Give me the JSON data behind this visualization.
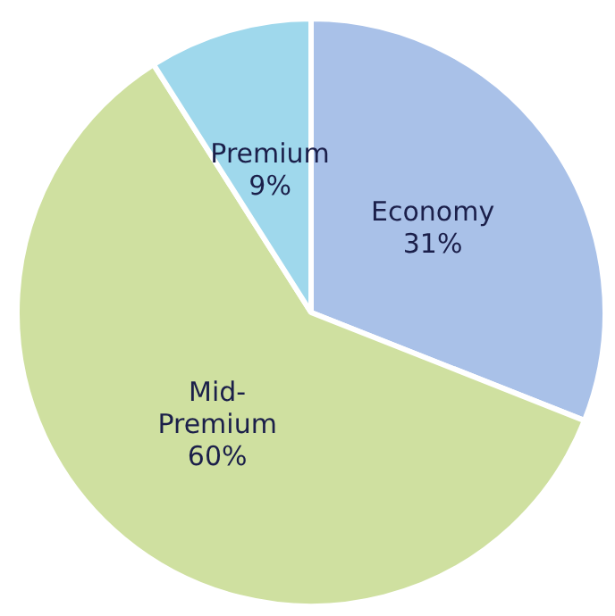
{
  "chart_data": {
    "type": "pie",
    "categories": [
      "Economy",
      "Mid-Premium",
      "Premium"
    ],
    "values": [
      31,
      60,
      9
    ],
    "colors": [
      "#a9c1e8",
      "#cfe0a0",
      "#9fd8ec"
    ],
    "value_labels": [
      "31%",
      "60%",
      "9%"
    ],
    "legend": false
  }
}
